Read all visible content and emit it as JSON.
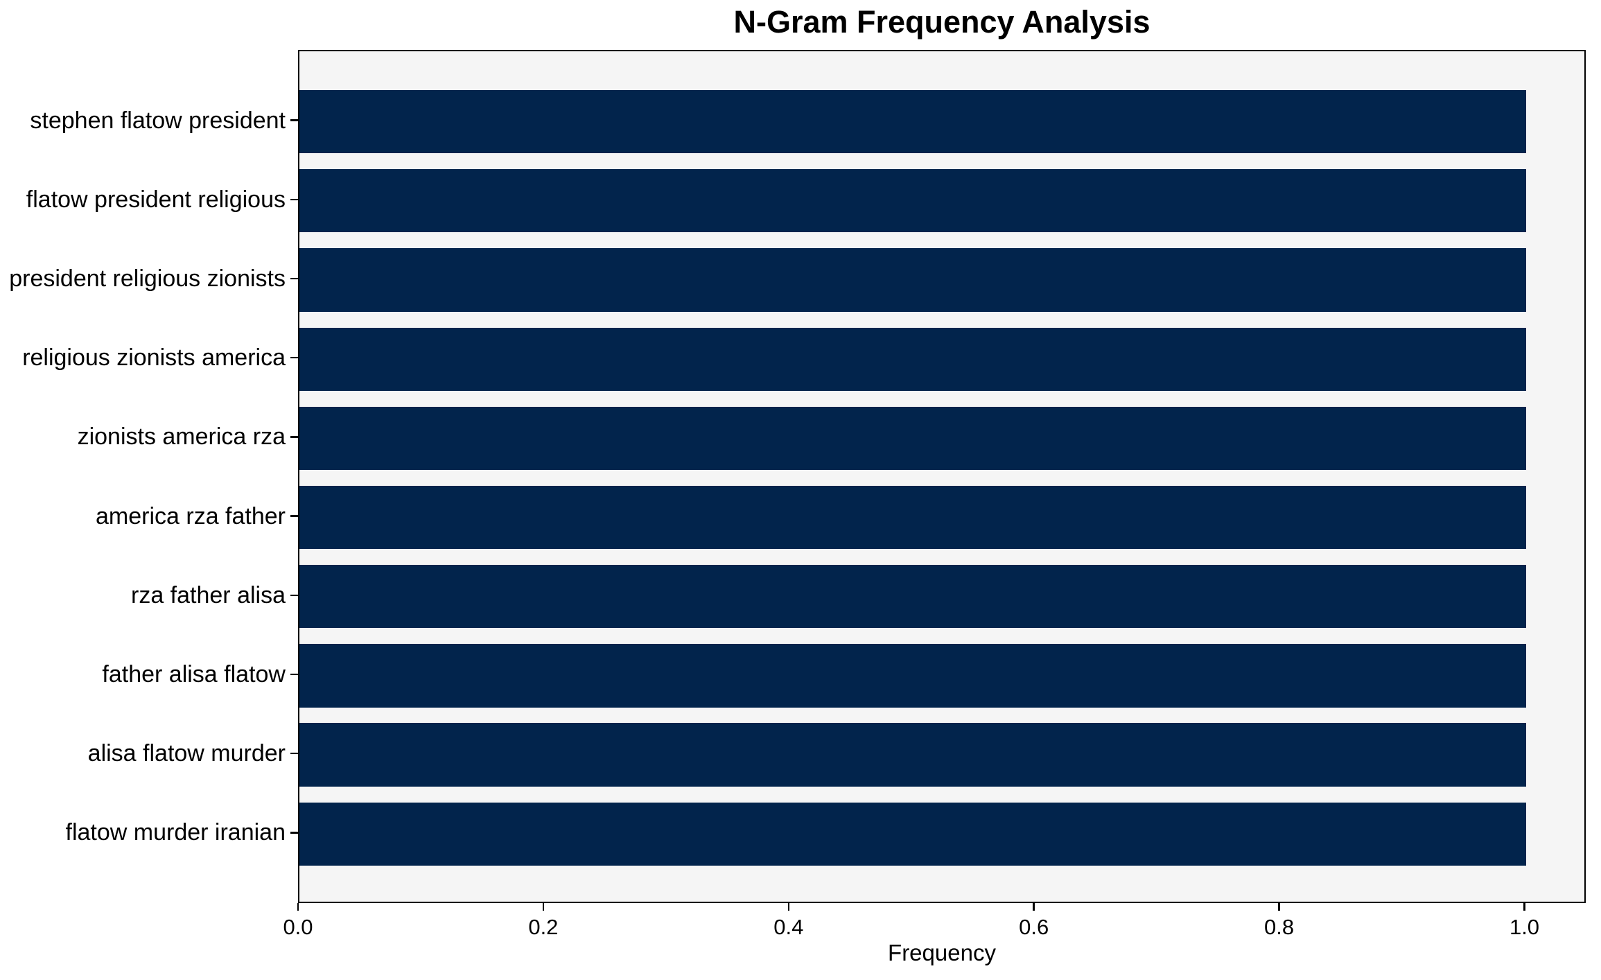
{
  "chart_data": {
    "type": "bar",
    "orientation": "horizontal",
    "title": "N-Gram Frequency Analysis",
    "xlabel": "Frequency",
    "ylabel": "",
    "categories": [
      "stephen flatow president",
      "flatow president religious",
      "president religious zionists",
      "religious zionists america",
      "zionists america rza",
      "america rza father",
      "rza father alisa",
      "father alisa flatow",
      "alisa flatow murder",
      "flatow murder iranian"
    ],
    "values": [
      1.0,
      1.0,
      1.0,
      1.0,
      1.0,
      1.0,
      1.0,
      1.0,
      1.0,
      1.0
    ],
    "xlim": [
      0,
      1.05
    ],
    "xticks": [
      0.0,
      0.2,
      0.4,
      0.6,
      0.8,
      1.0
    ],
    "xtick_labels": [
      "0.0",
      "0.2",
      "0.4",
      "0.6",
      "0.8",
      "1.0"
    ],
    "grid": false,
    "legend": null,
    "colors": {
      "bar": "#02244c",
      "plot_background": "#f5f5f5",
      "figure_background": "#ffffff",
      "axis": "#000000",
      "text": "#000000"
    }
  }
}
